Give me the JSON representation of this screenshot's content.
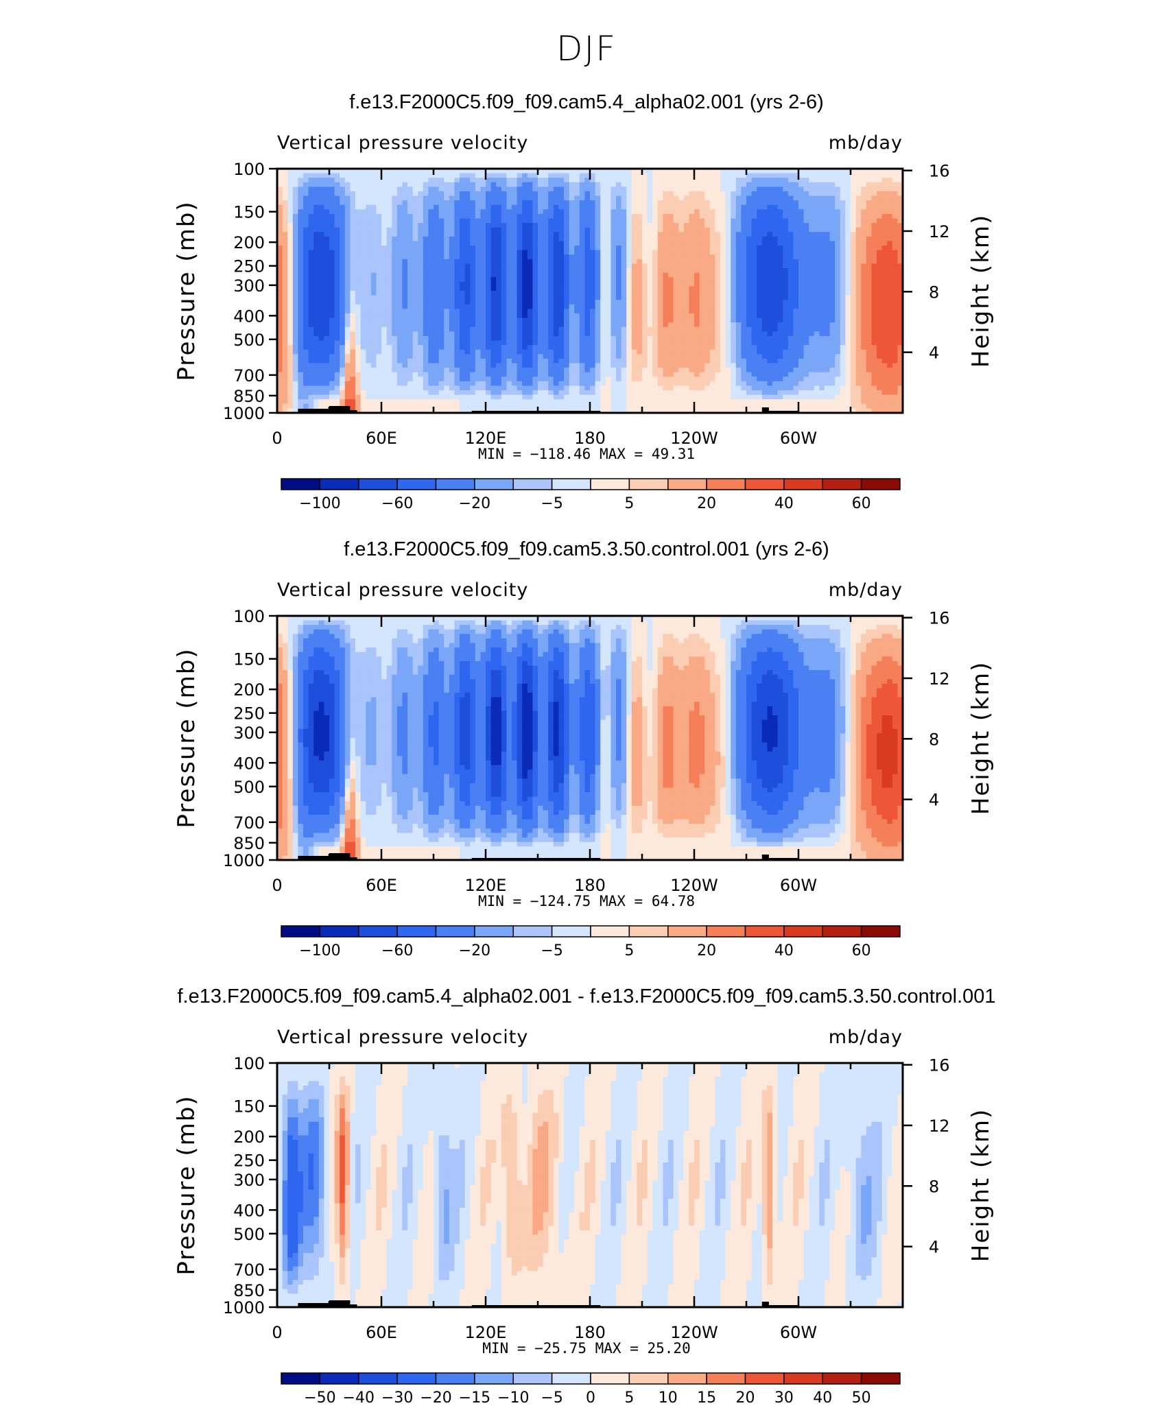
{
  "figure": {
    "suptitle": "DJF"
  },
  "chart_data": [
    {
      "type": "heatmap",
      "title": "f.e13.F2000C5.f09_f09.cam5.4_alpha02.001 (yrs 2-6)",
      "left_label": "Vertical pressure velocity",
      "right_label": "mb/day",
      "ylabel": "Pressure (mb)",
      "y2label": "Height (km)",
      "x_ticks": [
        "0",
        "60E",
        "120E",
        "180",
        "120W",
        "60W"
      ],
      "x_tick_lons": [
        0,
        60,
        120,
        180,
        240,
        300
      ],
      "xlim": [
        0,
        360
      ],
      "y_ticks": [
        "100",
        "150",
        "200",
        "250",
        "300",
        "400",
        "500",
        "700",
        "850",
        "1000"
      ],
      "y_tick_values": [
        100,
        150,
        200,
        250,
        300,
        400,
        500,
        700,
        850,
        1000
      ],
      "ylim": [
        1000,
        100
      ],
      "y2_ticks": [
        "16",
        "12",
        "8",
        "4"
      ],
      "y2_tick_values": [
        16,
        12,
        8,
        4
      ],
      "min_label": "MIN =",
      "min_value": "−118.46",
      "max_label": "MAX =",
      "max_value": "49.31",
      "colorbar_levels": [
        -120,
        -100,
        -80,
        -60,
        -40,
        -20,
        -10,
        -5,
        0,
        5,
        10,
        20,
        30,
        40,
        50,
        60,
        70
      ],
      "colorbar_labels": [
        "−100",
        "−60",
        "−20",
        "−5",
        "5",
        "20",
        "40",
        "60"
      ],
      "colorbar_label_positions": [
        1,
        3,
        5,
        7,
        9,
        11,
        13,
        15
      ],
      "colors": [
        "#000e85",
        "#0a2bb8",
        "#1e4edc",
        "#2f66ef",
        "#4a80f4",
        "#7aa6f7",
        "#a9c5fb",
        "#d4e6fd",
        "#fde9dc",
        "#fbcdb3",
        "#f9a984",
        "#f57f59",
        "#ee5638",
        "#d93b20",
        "#b32012",
        "#8c0a04"
      ],
      "field_scale": 1.0
    },
    {
      "type": "heatmap",
      "title": "f.e13.F2000C5.f09_f09.cam5.3.50.control.001 (yrs 2-6)",
      "left_label": "Vertical pressure velocity",
      "right_label": "mb/day",
      "ylabel": "Pressure (mb)",
      "y2label": "Height (km)",
      "x_ticks": [
        "0",
        "60E",
        "120E",
        "180",
        "120W",
        "60W"
      ],
      "x_tick_lons": [
        0,
        60,
        120,
        180,
        240,
        300
      ],
      "xlim": [
        0,
        360
      ],
      "y_ticks": [
        "100",
        "150",
        "200",
        "250",
        "300",
        "400",
        "500",
        "700",
        "850",
        "1000"
      ],
      "y_tick_values": [
        100,
        150,
        200,
        250,
        300,
        400,
        500,
        700,
        850,
        1000
      ],
      "ylim": [
        1000,
        100
      ],
      "y2_ticks": [
        "16",
        "12",
        "8",
        "4"
      ],
      "y2_tick_values": [
        16,
        12,
        8,
        4
      ],
      "min_label": "MIN =",
      "min_value": "−124.75",
      "max_label": "MAX =",
      "max_value": "64.78",
      "colorbar_levels": [
        -120,
        -100,
        -80,
        -60,
        -40,
        -20,
        -10,
        -5,
        0,
        5,
        10,
        20,
        30,
        40,
        50,
        60,
        70
      ],
      "colorbar_labels": [
        "−100",
        "−60",
        "−20",
        "−5",
        "5",
        "20",
        "40",
        "60"
      ],
      "colorbar_label_positions": [
        1,
        3,
        5,
        7,
        9,
        11,
        13,
        15
      ],
      "colors": [
        "#000e85",
        "#0a2bb8",
        "#1e4edc",
        "#2f66ef",
        "#4a80f4",
        "#7aa6f7",
        "#a9c5fb",
        "#d4e6fd",
        "#fde9dc",
        "#fbcdb3",
        "#f9a984",
        "#f57f59",
        "#ee5638",
        "#d93b20",
        "#b32012",
        "#8c0a04"
      ],
      "field_scale": 1.1
    },
    {
      "type": "heatmap",
      "title": "f.e13.F2000C5.f09_f09.cam5.4_alpha02.001 - f.e13.F2000C5.f09_f09.cam5.3.50.control.001",
      "left_label": "Vertical pressure velocity",
      "right_label": "mb/day",
      "ylabel": "Pressure (mb)",
      "y2label": "Height (km)",
      "x_ticks": [
        "0",
        "60E",
        "120E",
        "180",
        "120W",
        "60W"
      ],
      "x_tick_lons": [
        0,
        60,
        120,
        180,
        240,
        300
      ],
      "xlim": [
        0,
        360
      ],
      "y_ticks": [
        "100",
        "150",
        "200",
        "250",
        "300",
        "400",
        "500",
        "700",
        "850",
        "1000"
      ],
      "y_tick_values": [
        100,
        150,
        200,
        250,
        300,
        400,
        500,
        700,
        850,
        1000
      ],
      "ylim": [
        1000,
        100
      ],
      "y2_ticks": [
        "16",
        "12",
        "8",
        "4"
      ],
      "y2_tick_values": [
        16,
        12,
        8,
        4
      ],
      "min_label": "MIN =",
      "min_value": "−25.75",
      "max_label": "MAX =",
      "max_value": "25.20",
      "colorbar_levels": [
        -60,
        -50,
        -40,
        -30,
        -20,
        -15,
        -10,
        -5,
        0,
        5,
        10,
        15,
        20,
        30,
        40,
        50,
        60
      ],
      "colorbar_labels": [
        "−50",
        "−40",
        "−30",
        "−20",
        "−15",
        "−10",
        "−5",
        "0",
        "5",
        "10",
        "15",
        "20",
        "30",
        "40",
        "50"
      ],
      "colorbar_label_positions": [
        1,
        2,
        3,
        4,
        5,
        6,
        7,
        8,
        9,
        10,
        11,
        12,
        13,
        14,
        15
      ],
      "colors": [
        "#000e85",
        "#0a2bb8",
        "#1e4edc",
        "#2f66ef",
        "#4a80f4",
        "#7aa6f7",
        "#a9c5fb",
        "#d4e6fd",
        "#fde9dc",
        "#fbcdb3",
        "#f9a984",
        "#f57f59",
        "#ee5638",
        "#d93b20",
        "#b32012",
        "#8c0a04"
      ],
      "field_scale": 0.22
    }
  ]
}
